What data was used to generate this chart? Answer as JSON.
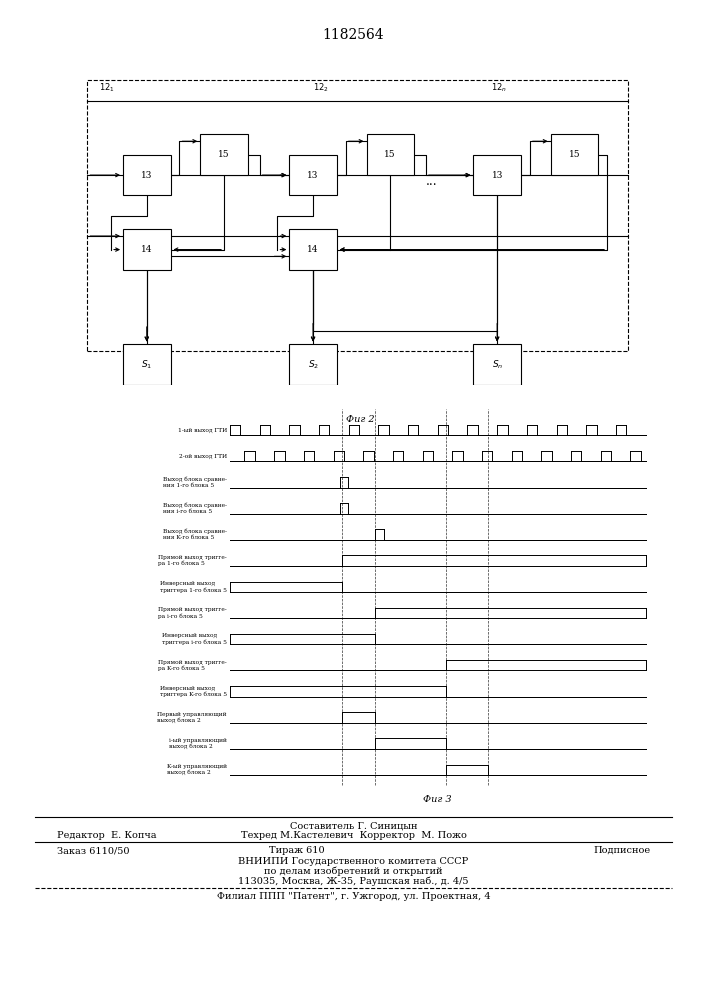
{
  "title": "1182564",
  "fig2_caption": "Фиг 2",
  "fig3_caption": "Фиг 3",
  "timing_labels": [
    "1-ый выход ГТИ",
    "2-ой выход ГТИ",
    "Выход блока сравне-\nния 1-го блока 5",
    "Выход блока сравне-\nния i-го блока 5",
    "Выход блока сравне-\nния K-го блока 5",
    "Прямой выход тригге-\nра 1-го блока 5",
    "Инверсный выход\nтриггера 1-го блока 5",
    "Прямой выход тригге-\nра i-го блока 5",
    "Инверсный выход\nтриггера i-го блока 5",
    "Прямой выход тригге-\nра K-го блока 5",
    "Инверсный выход\nтриггера K-го блока 5",
    "Первый управляющий\nвыход блока 2",
    "i-ый управляющий\nвыход блока 2",
    "K-ый управляющий\nвыход блока 2"
  ]
}
